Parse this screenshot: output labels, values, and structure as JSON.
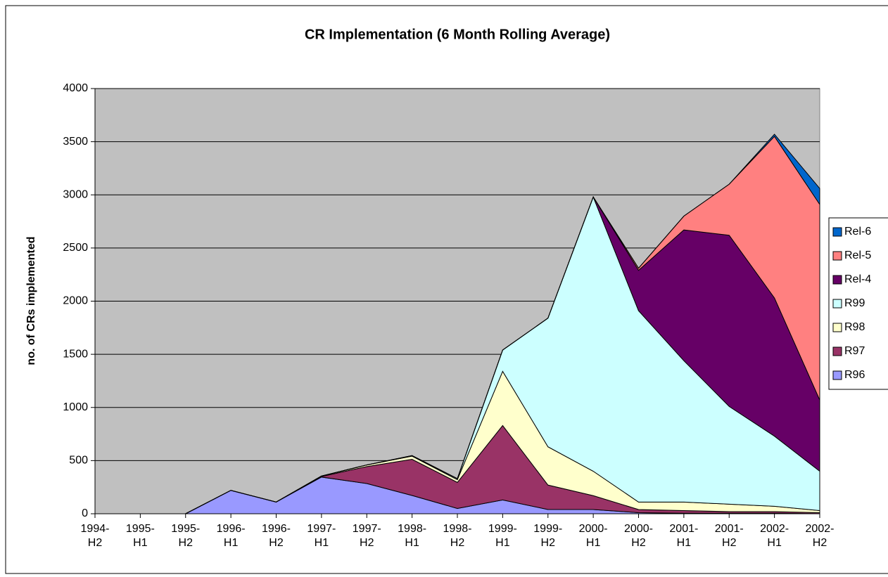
{
  "chart_data": {
    "type": "stacked_area",
    "title": "CR Implementation (6 Month Rolling Average)",
    "y_label": "no. of CRs implemented",
    "categories": [
      "1994- H2",
      "1995- H1",
      "1995- H2",
      "1996- H1",
      "1996- H2",
      "1997- H1",
      "1997- H2",
      "1998- H1",
      "1998- H2",
      "1999- H1",
      "1999- H2",
      "2000- H1",
      "2000- H2",
      "2001- H1",
      "2001- H2",
      "2002- H1",
      "2002- H2"
    ],
    "series": [
      {
        "name": "R96",
        "color": "#9999ff",
        "values": [
          0,
          0,
          0,
          220,
          110,
          345,
          284,
          172,
          50,
          130,
          40,
          40,
          10,
          5,
          5,
          5,
          0
        ]
      },
      {
        "name": "R97",
        "color": "#993366",
        "values": [
          0,
          0,
          0,
          0,
          0,
          5,
          160,
          340,
          245,
          700,
          230,
          130,
          30,
          25,
          15,
          15,
          10
        ]
      },
      {
        "name": "R98",
        "color": "#ffffcc",
        "values": [
          0,
          0,
          0,
          0,
          0,
          5,
          15,
          30,
          25,
          510,
          360,
          230,
          70,
          80,
          70,
          50,
          20
        ]
      },
      {
        "name": "R99",
        "color": "#ccffff",
        "values": [
          0,
          0,
          0,
          0,
          0,
          0,
          0,
          5,
          10,
          200,
          1210,
          2580,
          1800,
          1330,
          920,
          660,
          370
        ]
      },
      {
        "name": "Rel-4",
        "color": "#660066",
        "values": [
          0,
          0,
          0,
          0,
          0,
          0,
          0,
          0,
          0,
          0,
          0,
          0,
          380,
          1230,
          1610,
          1300,
          670
        ]
      },
      {
        "name": "Rel-5",
        "color": "#ff8080",
        "values": [
          0,
          0,
          0,
          0,
          0,
          0,
          0,
          0,
          0,
          0,
          0,
          0,
          20,
          130,
          480,
          1520,
          1840
        ]
      },
      {
        "name": "Rel-6",
        "color": "#0066cc",
        "values": [
          0,
          0,
          0,
          0,
          0,
          0,
          0,
          0,
          0,
          0,
          0,
          0,
          0,
          0,
          0,
          20,
          150
        ]
      }
    ],
    "ylim": [
      0,
      4000
    ],
    "yticks": [
      0,
      500,
      1000,
      1500,
      2000,
      2500,
      3000,
      3500,
      4000
    ],
    "grid": true,
    "legend": "right",
    "plot_background": "#c0c0c0"
  }
}
